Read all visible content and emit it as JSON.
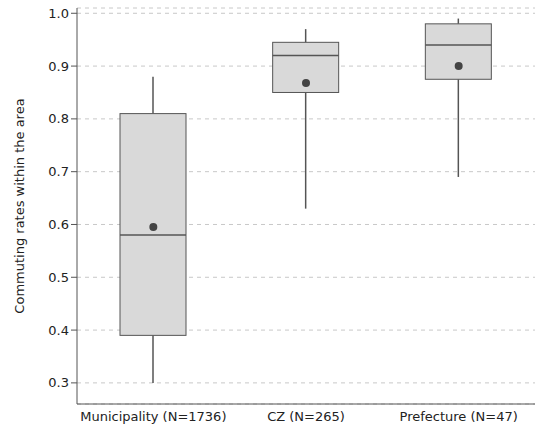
{
  "chart_data": {
    "type": "box",
    "y_label": "Commuting rates within the area",
    "categories": [
      "Municipality (N=1736)",
      "CZ (N=265)",
      "Prefecture (N=47)"
    ],
    "min": [
      0.3,
      0.63,
      0.69
    ],
    "q1": [
      0.39,
      0.85,
      0.875
    ],
    "median": [
      0.58,
      0.92,
      0.94
    ],
    "q3": [
      0.81,
      0.945,
      0.98
    ],
    "max": [
      0.88,
      0.97,
      0.99
    ],
    "mean": [
      0.595,
      0.868,
      0.9
    ],
    "color": "#d9d9d9",
    "ylim": [
      0.26,
      1.01
    ],
    "yticks": [
      0.3,
      0.4,
      0.5,
      0.6,
      0.7,
      0.8,
      0.9,
      {
        "value": 1,
        "label": "1.0"
      }
    ],
    "grid": true
  }
}
